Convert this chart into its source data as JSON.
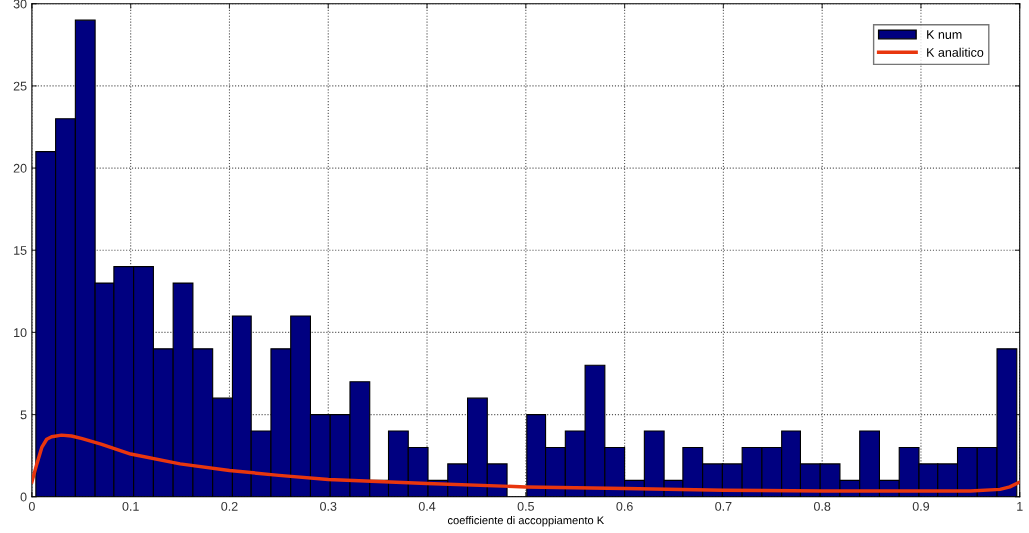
{
  "chart_data": {
    "type": "histogram",
    "xlabel": "coefficiente di accoppiamento K",
    "bins": [
      0.004,
      0.024,
      0.044,
      0.064,
      0.083,
      0.103,
      0.123,
      0.143,
      0.163,
      0.183,
      0.203,
      0.222,
      0.242,
      0.262,
      0.282,
      0.302,
      0.322,
      0.342,
      0.361,
      0.381,
      0.401,
      0.421,
      0.441,
      0.461,
      0.481,
      0.501,
      0.52,
      0.54,
      0.56,
      0.58,
      0.6,
      0.62,
      0.64,
      0.659,
      0.679,
      0.699,
      0.719,
      0.739,
      0.759,
      0.778,
      0.798,
      0.818,
      0.838,
      0.858,
      0.878,
      0.898,
      0.917,
      0.937,
      0.957,
      0.977,
      0.997
    ],
    "series": [
      {
        "name": "K num",
        "color": "#000080",
        "values": [
          21,
          23,
          29,
          13,
          14,
          14,
          9,
          13,
          9,
          6,
          11,
          4,
          9,
          11,
          5,
          5,
          7,
          1,
          4,
          3,
          1,
          2,
          6,
          2,
          0,
          5,
          3,
          4,
          8,
          3,
          1,
          4,
          1,
          3,
          2,
          2,
          3,
          3,
          4,
          2,
          2,
          1,
          4,
          1,
          3,
          2,
          2,
          3,
          3,
          9
        ]
      },
      {
        "name": "K analitico",
        "type": "line",
        "color": "#e8360e",
        "x": [
          0,
          0.005,
          0.01,
          0.015,
          0.02,
          0.03,
          0.04,
          0.05,
          0.07,
          0.1,
          0.15,
          0.2,
          0.25,
          0.3,
          0.4,
          0.5,
          0.6,
          0.7,
          0.8,
          0.9,
          0.95,
          0.98,
          0.99,
          1.0
        ],
        "values": [
          0.9,
          2.0,
          3.0,
          3.5,
          3.65,
          3.75,
          3.7,
          3.55,
          3.2,
          2.6,
          2.0,
          1.6,
          1.3,
          1.05,
          0.8,
          0.6,
          0.5,
          0.4,
          0.35,
          0.35,
          0.35,
          0.45,
          0.6,
          0.9
        ]
      }
    ],
    "xlim": [
      0,
      1
    ],
    "ylim": [
      0,
      30
    ],
    "xticks": [
      0,
      0.1,
      0.2,
      0.3,
      0.4,
      0.5,
      0.6,
      0.7,
      0.8,
      0.9,
      1
    ],
    "yticks": [
      0,
      5,
      10,
      15,
      20,
      25,
      30
    ],
    "grid": true,
    "legend": "top right"
  }
}
